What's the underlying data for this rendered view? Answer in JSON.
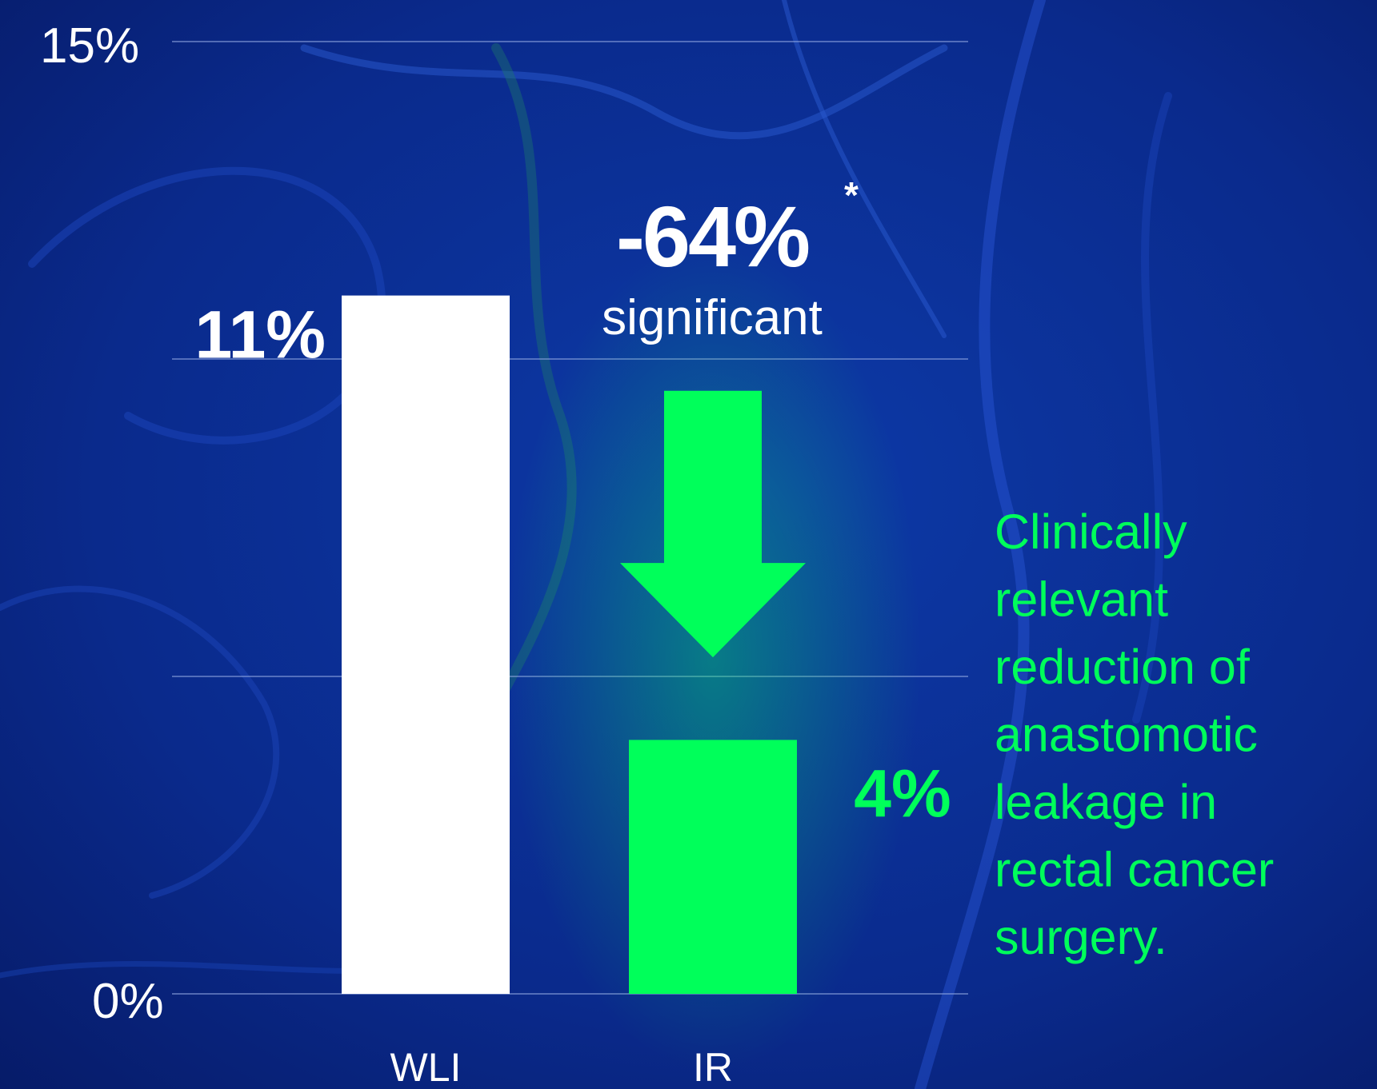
{
  "chart_data": {
    "type": "bar",
    "categories": [
      "WLI",
      "IR"
    ],
    "values": [
      11,
      4
    ],
    "value_labels": [
      "11%",
      "4%"
    ],
    "ylim": [
      0,
      15
    ],
    "y_ticks": [
      0,
      5,
      10,
      15
    ],
    "y_tick_labels": [
      "0%",
      "",
      "",
      "15%"
    ],
    "grid": true,
    "bar_colors": [
      "#ffffff",
      "#00ff5a"
    ],
    "label_colors": [
      "#ffffff",
      "#00ff5a"
    ],
    "annotation": {
      "value": "-64%",
      "superscript": "*",
      "subtext": "significant",
      "arrow_color": "#00ff5a",
      "arrow_from": 9.5,
      "arrow_to": 5.3
    },
    "side_note_lines": [
      "Clinically",
      "relevant",
      "reduction of",
      "anastomotic",
      "leakage in",
      "rectal cancer",
      "surgery."
    ],
    "side_note_color": "#00ff5a",
    "background_color": "#0a2a88"
  }
}
